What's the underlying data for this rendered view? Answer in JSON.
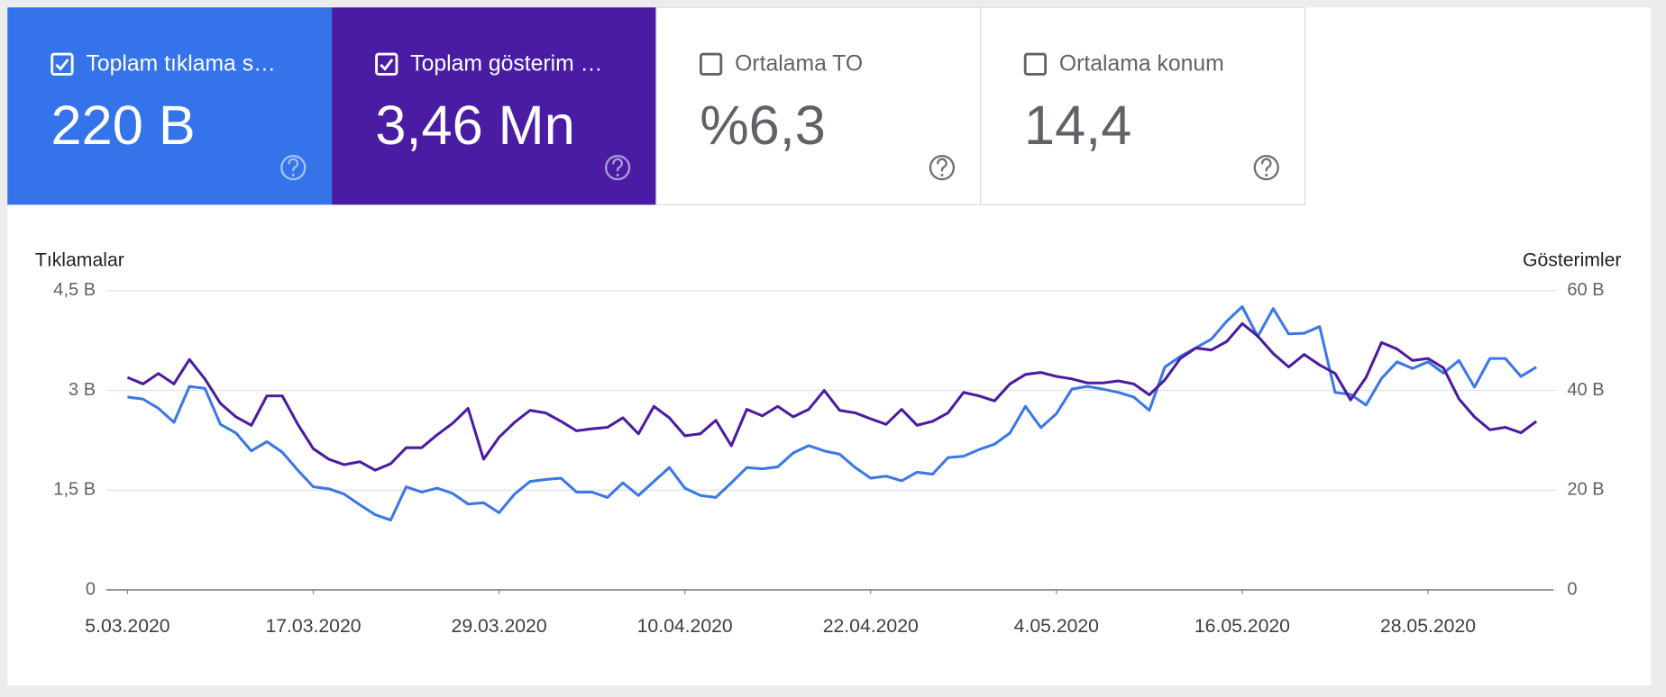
{
  "cards": [
    {
      "label": "Toplam tıklama s…",
      "value": "220 B",
      "checked": true,
      "background": "#3473ea",
      "foreground": "#ffffff"
    },
    {
      "label": "Toplam gösterim …",
      "value": "3,46 Mn",
      "checked": true,
      "background": "#4a1ca4",
      "foreground": "#ffffff"
    },
    {
      "label": "Ortalama TO",
      "value": "%6,3",
      "checked": false,
      "background": "#ffffff",
      "foreground": "#5f6368"
    },
    {
      "label": "Ortalama konum",
      "value": "14,4",
      "checked": false,
      "background": "#ffffff",
      "foreground": "#5f6368"
    }
  ],
  "chart_data": {
    "type": "line",
    "y_label": "Tıklamalar",
    "y2_label": "Gösterimler",
    "x": [
      "2020-03-05",
      "2020-03-06",
      "2020-03-07",
      "2020-03-08",
      "2020-03-09",
      "2020-03-10",
      "2020-03-11",
      "2020-03-12",
      "2020-03-13",
      "2020-03-14",
      "2020-03-15",
      "2020-03-16",
      "2020-03-17",
      "2020-03-18",
      "2020-03-19",
      "2020-03-20",
      "2020-03-21",
      "2020-03-22",
      "2020-03-23",
      "2020-03-24",
      "2020-03-25",
      "2020-03-26",
      "2020-03-27",
      "2020-03-28",
      "2020-03-29",
      "2020-03-30",
      "2020-03-31",
      "2020-04-01",
      "2020-04-02",
      "2020-04-03",
      "2020-04-04",
      "2020-04-05",
      "2020-04-06",
      "2020-04-07",
      "2020-04-08",
      "2020-04-09",
      "2020-04-10",
      "2020-04-11",
      "2020-04-12",
      "2020-04-13",
      "2020-04-14",
      "2020-04-15",
      "2020-04-16",
      "2020-04-17",
      "2020-04-18",
      "2020-04-19",
      "2020-04-20",
      "2020-04-21",
      "2020-04-22",
      "2020-04-23",
      "2020-04-24",
      "2020-04-25",
      "2020-04-26",
      "2020-04-27",
      "2020-04-28",
      "2020-04-29",
      "2020-04-30",
      "2020-05-01",
      "2020-05-02",
      "2020-05-03",
      "2020-05-04",
      "2020-05-05",
      "2020-05-06",
      "2020-05-07",
      "2020-05-08",
      "2020-05-09",
      "2020-05-10",
      "2020-05-11",
      "2020-05-12",
      "2020-05-13",
      "2020-05-14",
      "2020-05-15",
      "2020-05-16",
      "2020-05-17",
      "2020-05-18",
      "2020-05-19",
      "2020-05-20",
      "2020-05-21",
      "2020-05-22",
      "2020-05-23",
      "2020-05-24",
      "2020-05-25",
      "2020-05-26",
      "2020-05-27",
      "2020-05-28",
      "2020-05-29",
      "2020-05-30",
      "2020-05-31",
      "2020-06-01",
      "2020-06-02",
      "2020-06-03",
      "2020-06-04"
    ],
    "series": [
      {
        "name": "Tıklamalar",
        "color": "#3b78e7",
        "axis": "y",
        "values": [
          2900,
          2870,
          2730,
          2520,
          3060,
          3030,
          2490,
          2360,
          2090,
          2230,
          2070,
          1800,
          1550,
          1520,
          1440,
          1280,
          1130,
          1050,
          1550,
          1470,
          1530,
          1450,
          1290,
          1310,
          1160,
          1440,
          1630,
          1660,
          1680,
          1470,
          1470,
          1390,
          1610,
          1420,
          1630,
          1840,
          1530,
          1420,
          1390,
          1610,
          1840,
          1820,
          1850,
          2060,
          2170,
          2090,
          2040,
          1840,
          1680,
          1710,
          1640,
          1770,
          1740,
          1990,
          2010,
          2110,
          2190,
          2360,
          2760,
          2440,
          2650,
          3020,
          3060,
          3020,
          2970,
          2900,
          2700,
          3350,
          3510,
          3640,
          3770,
          4040,
          4260,
          3810,
          4230,
          3850,
          3860,
          3960,
          2970,
          2940,
          2780,
          3180,
          3430,
          3330,
          3430,
          3260,
          3450,
          3050,
          3480,
          3480,
          3210,
          3350
        ]
      },
      {
        "name": "Gösterimler",
        "color": "#4c1ca0",
        "axis": "y2",
        "values": [
          42600,
          41300,
          43400,
          41300,
          46200,
          42300,
          37400,
          34700,
          33000,
          38900,
          38900,
          33200,
          28300,
          26200,
          25100,
          25700,
          24000,
          25300,
          28500,
          28500,
          31100,
          33400,
          36400,
          26200,
          30600,
          33600,
          36000,
          35500,
          33800,
          31900,
          32300,
          32600,
          34500,
          31300,
          36800,
          34500,
          30900,
          31300,
          34000,
          28900,
          36200,
          34900,
          36800,
          34700,
          36200,
          40000,
          36000,
          35500,
          34300,
          33200,
          36200,
          33000,
          33800,
          35500,
          39600,
          38900,
          37900,
          41300,
          43200,
          43600,
          42800,
          42300,
          41500,
          41500,
          41900,
          41300,
          39100,
          42100,
          46400,
          48500,
          48100,
          49800,
          53400,
          50900,
          47400,
          44700,
          47200,
          45100,
          43400,
          38100,
          42600,
          49600,
          48300,
          46000,
          46400,
          44500,
          38300,
          34700,
          32100,
          32600,
          31500,
          33800
        ]
      }
    ],
    "xticks": [
      {
        "value": "2020-03-05",
        "label": "5.03.2020"
      },
      {
        "value": "2020-03-17",
        "label": "17.03.2020"
      },
      {
        "value": "2020-03-29",
        "label": "29.03.2020"
      },
      {
        "value": "2020-04-10",
        "label": "10.04.2020"
      },
      {
        "value": "2020-04-22",
        "label": "22.04.2020"
      },
      {
        "value": "2020-05-04",
        "label": "4.05.2020"
      },
      {
        "value": "2020-05-16",
        "label": "16.05.2020"
      },
      {
        "value": "2020-05-28",
        "label": "28.05.2020"
      }
    ],
    "ylim": [
      0,
      4500
    ],
    "yticks": [
      0,
      {
        "value": 1500,
        "label": "1,5 B"
      },
      {
        "value": 3000,
        "label": "3 B"
      },
      {
        "value": 4500,
        "label": "4,5 B"
      }
    ],
    "y2lim": [
      0,
      60000
    ],
    "y2ticks": [
      0,
      {
        "value": 20000,
        "label": "20 B"
      },
      {
        "value": 40000,
        "label": "40 B"
      },
      {
        "value": 60000,
        "label": "60 B"
      }
    ],
    "grid": true
  }
}
